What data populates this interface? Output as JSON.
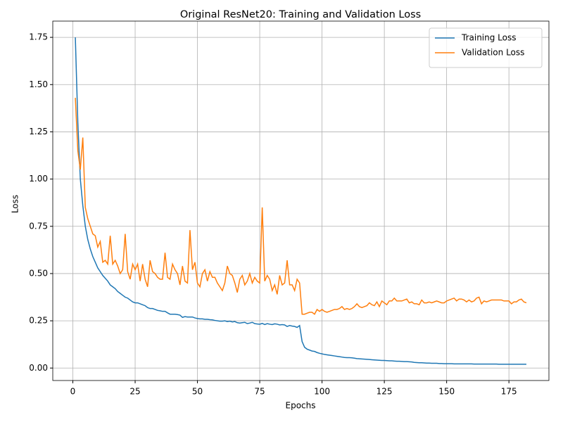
{
  "chart_data": {
    "type": "line",
    "title": "Original ResNet20: Training and Validation Loss",
    "xlabel": "Epochs",
    "ylabel": "Loss",
    "x": [
      1,
      2,
      3,
      4,
      5,
      6,
      7,
      8,
      9,
      10,
      11,
      12,
      13,
      14,
      15,
      16,
      17,
      18,
      19,
      20,
      21,
      22,
      23,
      24,
      25,
      26,
      27,
      28,
      29,
      30,
      31,
      32,
      33,
      34,
      35,
      36,
      37,
      38,
      39,
      40,
      41,
      42,
      43,
      44,
      45,
      46,
      47,
      48,
      49,
      50,
      51,
      52,
      53,
      54,
      55,
      56,
      57,
      58,
      59,
      60,
      61,
      62,
      63,
      64,
      65,
      66,
      67,
      68,
      69,
      70,
      71,
      72,
      73,
      74,
      75,
      76,
      77,
      78,
      79,
      80,
      81,
      82,
      83,
      84,
      85,
      86,
      87,
      88,
      89,
      90,
      91,
      92,
      93,
      94,
      95,
      96,
      97,
      98,
      99,
      100,
      101,
      102,
      103,
      104,
      105,
      106,
      107,
      108,
      109,
      110,
      111,
      112,
      113,
      114,
      115,
      116,
      117,
      118,
      119,
      120,
      121,
      122,
      123,
      124,
      125,
      126,
      127,
      128,
      129,
      130,
      131,
      132,
      133,
      134,
      135,
      136,
      137,
      138,
      139,
      140,
      141,
      142,
      143,
      144,
      145,
      146,
      147,
      148,
      149,
      150,
      151,
      152,
      153,
      154,
      155,
      156,
      157,
      158,
      159,
      160,
      161,
      162,
      163,
      164,
      165,
      166,
      167,
      168,
      169,
      170,
      171,
      172,
      173,
      174,
      175,
      176,
      177,
      178,
      179,
      180,
      181,
      182
    ],
    "series": [
      {
        "name": "Training Loss",
        "color": "#1f77b4",
        "values": [
          1.75,
          1.3,
          1.0,
          0.86,
          0.75,
          0.68,
          0.63,
          0.59,
          0.56,
          0.53,
          0.51,
          0.49,
          0.475,
          0.46,
          0.44,
          0.43,
          0.42,
          0.405,
          0.395,
          0.385,
          0.375,
          0.37,
          0.36,
          0.35,
          0.345,
          0.345,
          0.34,
          0.335,
          0.33,
          0.32,
          0.315,
          0.315,
          0.31,
          0.305,
          0.303,
          0.3,
          0.3,
          0.292,
          0.285,
          0.285,
          0.285,
          0.283,
          0.28,
          0.268,
          0.272,
          0.27,
          0.27,
          0.27,
          0.265,
          0.262,
          0.26,
          0.26,
          0.258,
          0.258,
          0.256,
          0.255,
          0.252,
          0.25,
          0.248,
          0.248,
          0.25,
          0.246,
          0.248,
          0.244,
          0.246,
          0.24,
          0.238,
          0.24,
          0.242,
          0.235,
          0.238,
          0.242,
          0.235,
          0.233,
          0.232,
          0.236,
          0.23,
          0.235,
          0.232,
          0.23,
          0.234,
          0.232,
          0.228,
          0.23,
          0.228,
          0.22,
          0.225,
          0.222,
          0.22,
          0.215,
          0.225,
          0.14,
          0.11,
          0.1,
          0.095,
          0.09,
          0.088,
          0.082,
          0.078,
          0.075,
          0.072,
          0.07,
          0.068,
          0.066,
          0.064,
          0.062,
          0.06,
          0.058,
          0.056,
          0.055,
          0.055,
          0.054,
          0.052,
          0.05,
          0.049,
          0.048,
          0.047,
          0.046,
          0.045,
          0.044,
          0.043,
          0.042,
          0.041,
          0.04,
          0.04,
          0.039,
          0.038,
          0.038,
          0.037,
          0.036,
          0.036,
          0.035,
          0.034,
          0.034,
          0.033,
          0.032,
          0.03,
          0.029,
          0.028,
          0.028,
          0.027,
          0.026,
          0.026,
          0.025,
          0.025,
          0.025,
          0.024,
          0.024,
          0.023,
          0.023,
          0.023,
          0.023,
          0.022,
          0.022,
          0.022,
          0.022,
          0.022,
          0.022,
          0.022,
          0.022,
          0.021,
          0.021,
          0.021,
          0.021,
          0.021,
          0.021,
          0.021,
          0.021,
          0.021,
          0.021,
          0.02,
          0.02,
          0.02,
          0.02,
          0.02,
          0.02,
          0.02,
          0.02,
          0.02,
          0.02,
          0.02,
          0.02
        ]
      },
      {
        "name": "Validation Loss",
        "color": "#ff7f0e",
        "values": [
          1.43,
          1.15,
          1.05,
          1.22,
          0.85,
          0.79,
          0.75,
          0.71,
          0.7,
          0.64,
          0.67,
          0.56,
          0.57,
          0.55,
          0.7,
          0.55,
          0.57,
          0.54,
          0.5,
          0.52,
          0.71,
          0.51,
          0.47,
          0.55,
          0.52,
          0.55,
          0.46,
          0.55,
          0.47,
          0.43,
          0.57,
          0.51,
          0.5,
          0.48,
          0.47,
          0.47,
          0.61,
          0.48,
          0.47,
          0.55,
          0.52,
          0.5,
          0.44,
          0.54,
          0.46,
          0.45,
          0.73,
          0.52,
          0.56,
          0.45,
          0.43,
          0.5,
          0.52,
          0.46,
          0.51,
          0.48,
          0.48,
          0.45,
          0.43,
          0.41,
          0.45,
          0.54,
          0.5,
          0.49,
          0.45,
          0.4,
          0.47,
          0.49,
          0.44,
          0.46,
          0.5,
          0.45,
          0.48,
          0.46,
          0.45,
          0.85,
          0.46,
          0.49,
          0.47,
          0.41,
          0.44,
          0.39,
          0.49,
          0.44,
          0.45,
          0.57,
          0.44,
          0.44,
          0.41,
          0.47,
          0.45,
          0.285,
          0.285,
          0.29,
          0.295,
          0.295,
          0.285,
          0.31,
          0.3,
          0.31,
          0.3,
          0.295,
          0.3,
          0.305,
          0.31,
          0.31,
          0.315,
          0.325,
          0.31,
          0.315,
          0.31,
          0.315,
          0.325,
          0.34,
          0.325,
          0.32,
          0.325,
          0.33,
          0.345,
          0.335,
          0.33,
          0.35,
          0.325,
          0.355,
          0.345,
          0.335,
          0.355,
          0.355,
          0.37,
          0.355,
          0.355,
          0.355,
          0.36,
          0.365,
          0.345,
          0.35,
          0.34,
          0.34,
          0.335,
          0.36,
          0.345,
          0.345,
          0.35,
          0.345,
          0.35,
          0.355,
          0.35,
          0.345,
          0.345,
          0.355,
          0.36,
          0.365,
          0.37,
          0.355,
          0.365,
          0.365,
          0.36,
          0.35,
          0.36,
          0.35,
          0.355,
          0.37,
          0.375,
          0.34,
          0.355,
          0.35,
          0.355,
          0.36,
          0.36,
          0.36,
          0.36,
          0.36,
          0.355,
          0.355,
          0.355,
          0.34,
          0.35,
          0.35,
          0.36,
          0.365,
          0.35,
          0.345
        ]
      }
    ],
    "xlim": [
      -8.05,
      191.05
    ],
    "ylim": [
      -0.066,
      1.836
    ],
    "xticks": [
      0,
      25,
      50,
      75,
      100,
      125,
      150,
      175
    ],
    "yticks": [
      {
        "value": 0,
        "label": "0.00"
      },
      {
        "value": 0.25,
        "label": "0.25"
      },
      {
        "value": 0.5,
        "label": "0.50"
      },
      {
        "value": 0.75,
        "label": "0.75"
      },
      {
        "value": 1,
        "label": "1.00"
      },
      {
        "value": 1.25,
        "label": "1.25"
      },
      {
        "value": 1.5,
        "label": "1.50"
      },
      {
        "value": 1.75,
        "label": "1.75"
      }
    ],
    "grid": true,
    "legend": "upper right"
  }
}
